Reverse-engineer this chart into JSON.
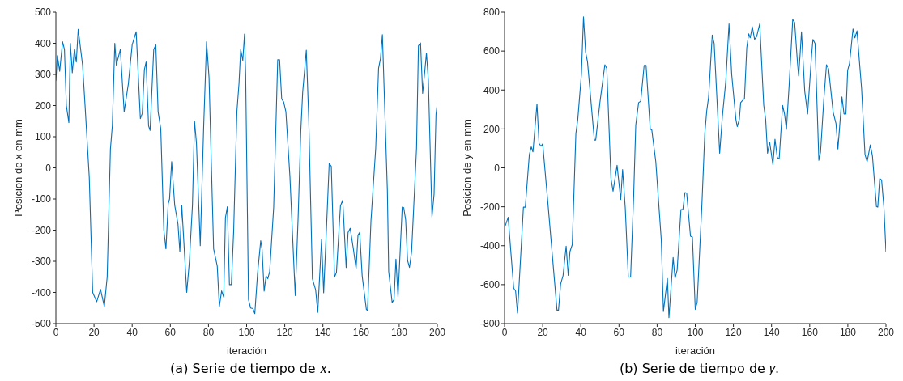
{
  "chart_data": [
    {
      "type": "line",
      "xlabel": "iteración",
      "ylabel": "Posicion de x en mm",
      "annotations": [
        "(a) Serie de tiempo de 𝑥."
      ],
      "xlim": [
        0,
        200
      ],
      "xticks": [
        0,
        20,
        40,
        60,
        80,
        100,
        120,
        140,
        160,
        180,
        200
      ],
      "ylim": [
        -500,
        500
      ],
      "yticks": [
        -500,
        -400,
        -300,
        -200,
        -100,
        0,
        100,
        200,
        300,
        400,
        500
      ],
      "x": [
        0,
        0.8,
        2,
        3.5,
        4.5,
        5.5,
        6.8,
        7.6,
        8.6,
        9.7,
        10.7,
        11.7,
        14,
        15.4,
        17.5,
        19.3,
        21.4,
        23.4,
        25.4,
        26.9,
        28.6,
        29.6,
        30.9,
        31.7,
        33.8,
        35.8,
        38,
        40,
        42.1,
        44.3,
        45.3,
        46.4,
        47.3,
        48.6,
        49.4,
        51.3,
        52.4,
        53.6,
        55,
        56.6,
        57.7,
        58.9,
        59.6,
        60.7,
        62.3,
        64,
        65,
        66,
        68.6,
        70,
        71.6,
        72.7,
        73.7,
        75.7,
        77.5,
        79,
        80.3,
        82.7,
        84.6,
        85.7,
        86.9,
        88,
        88.9,
        89.9,
        91,
        92,
        93.2,
        94.9,
        96,
        96.9,
        98,
        98.9,
        99.5,
        101,
        102.1,
        103.3,
        104.3,
        105.7,
        107.4,
        108.1,
        109.2,
        110.2,
        111.1,
        112.1,
        114.2,
        116.3,
        117.3,
        118.4,
        119.4,
        120.6,
        122.7,
        125.5,
        127,
        128.4,
        129.4,
        131.3,
        132.6,
        134.5,
        136.2,
        137.3,
        139.3,
        140.4,
        142.1,
        143.3,
        144.4,
        146.1,
        147.1,
        149.2,
        150.4,
        152.2,
        153.2,
        154.3,
        156,
        157.4,
        158.4,
        159.3,
        160.6,
        162.8,
        163.4,
        165.2,
        167.7,
        169.2,
        170.2,
        171.2,
        173.8,
        174.5,
        176.3,
        177.3,
        178.3,
        179.4,
        181.6,
        182.4,
        183.4,
        184.4,
        185.4,
        186.5,
        189.1,
        190.1,
        191.2,
        192.3,
        193.3,
        194.3,
        195.3,
        197.2,
        198.3,
        199.3,
        200
      ],
      "series": [
        {
          "color": "#0072bd",
          "values": [
            280,
            360,
            310,
            405,
            380,
            200,
            145,
            400,
            305,
            380,
            340,
            445,
            330,
            190,
            -30,
            -400,
            -430,
            -390,
            -445,
            -350,
            60,
            135,
            400,
            330,
            380,
            180,
            270,
            395,
            437,
            158,
            175,
            315,
            340,
            135,
            120,
            380,
            395,
            180,
            125,
            -200,
            -260,
            -115,
            -100,
            20,
            -120,
            -180,
            -270,
            -120,
            -400,
            -300,
            -120,
            150,
            80,
            -250,
            135,
            405,
            290,
            -260,
            -315,
            -445,
            -395,
            -415,
            -160,
            -125,
            -375,
            -375,
            -205,
            180,
            270,
            380,
            345,
            430,
            300,
            -423,
            -450,
            -452,
            -468,
            -342,
            -234,
            -261,
            -396,
            -347,
            -356,
            -333,
            -126,
            347,
            347,
            221,
            212,
            180,
            -27,
            -410,
            -162,
            117,
            243,
            378,
            153,
            -356,
            -392,
            -464,
            -230,
            -401,
            -162,
            14,
            5,
            -351,
            -336,
            -122,
            -104,
            -320,
            -207,
            -194,
            -261,
            -324,
            -216,
            -207,
            -347,
            -455,
            -458,
            -171,
            63,
            320,
            351,
            428,
            -72,
            -333,
            -432,
            -423,
            -293,
            -414,
            -126,
            -128,
            -167,
            -297,
            -320,
            -270,
            63,
            392,
            401,
            239,
            302,
            369,
            281,
            -158,
            -84,
            171,
            207
          ]
        }
      ]
    },
    {
      "type": "line",
      "xlabel": "iteración",
      "ylabel": "Posicion de y en mm",
      "annotations": [
        "(b) Serie de tiempo de 𝑦."
      ],
      "xlim": [
        0,
        200
      ],
      "xticks": [
        0,
        20,
        40,
        60,
        80,
        100,
        120,
        140,
        160,
        180,
        200
      ],
      "ylim": [
        -800,
        800
      ],
      "yticks": [
        -800,
        -600,
        -400,
        -200,
        0,
        200,
        400,
        600,
        800
      ],
      "x": [
        0,
        1.9,
        4.8,
        5.8,
        6.8,
        9.9,
        10.9,
        13,
        14,
        14.9,
        17,
        18.1,
        19.1,
        20,
        22.9,
        27.5,
        28.3,
        29.4,
        30.7,
        32.3,
        33.4,
        34.3,
        35.5,
        37.4,
        38.4,
        40.3,
        41.4,
        42.5,
        43.5,
        47.1,
        47.8,
        50,
        52.6,
        53.6,
        55.8,
        56.9,
        59,
        60.9,
        61.9,
        63.3,
        64.9,
        66.1,
        67.7,
        68.8,
        70.3,
        71.4,
        73.2,
        74.2,
        76.4,
        77.2,
        79.3,
        82.2,
        83.3,
        85.4,
        86.2,
        88.4,
        89.4,
        90.5,
        92.5,
        93.5,
        94.6,
        95.5,
        97.5,
        98.5,
        100,
        101,
        103.5,
        105,
        106,
        107,
        108.9,
        109.9,
        112.8,
        114.2,
        116,
        117.7,
        119.1,
        121.3,
        122,
        123.1,
        123.8,
        125.8,
        127,
        128,
        128.8,
        129.9,
        131.1,
        132.2,
        133.8,
        135.9,
        136.9,
        137.9,
        139,
        140.7,
        141.8,
        143,
        144,
        145.8,
        146.8,
        147.8,
        149.2,
        151.1,
        152.1,
        153.6,
        154.2,
        155,
        155.7,
        157.4,
        158.9,
        161,
        161.7,
        162.8,
        164.8,
        165.7,
        167.4,
        168.8,
        169.9,
        172.3,
        173.8,
        174.8,
        176.9,
        178,
        179,
        179.9,
        180.9,
        182.7,
        183.7,
        184.8,
        187.2,
        189,
        190.1,
        191.8,
        192.9,
        195,
        195.7,
        196.7,
        197.7,
        198.9,
        200
      ],
      "series": [
        {
          "color": "#0072bd",
          "values": [
            -308,
            -254,
            -618,
            -633,
            -746,
            -202,
            -202,
            68,
            108,
            82,
            328,
            126,
            111,
            123,
            -200,
            -731,
            -731,
            -597,
            -553,
            -402,
            -553,
            -430,
            -395,
            176,
            249,
            480,
            776,
            595,
            545,
            143,
            143,
            335,
            530,
            511,
            -55,
            -120,
            13,
            -163,
            -9,
            -207,
            -561,
            -561,
            -142,
            220,
            335,
            342,
            527,
            527,
            198,
            195,
            32,
            -373,
            -738,
            -568,
            -770,
            -460,
            -568,
            -525,
            -214,
            -214,
            -127,
            -130,
            -351,
            -355,
            -727,
            -690,
            -185,
            176,
            292,
            364,
            682,
            639,
            75,
            263,
            444,
            740,
            480,
            249,
            212,
            249,
            335,
            357,
            617,
            689,
            668,
            725,
            660,
            675,
            740,
            321,
            249,
            75,
            133,
            17,
            147,
            53,
            46,
            321,
            277,
            198,
            422,
            762,
            747,
            538,
            473,
            588,
            699,
            393,
            277,
            581,
            660,
            639,
            39,
            82,
            350,
            530,
            509,
            285,
            227,
            97,
            364,
            277,
            277,
            501,
            538,
            714,
            668,
            704,
            408,
            68,
            32,
            118,
            61,
            -199,
            -202,
            -55,
            -62,
            -199,
            -431
          ]
        }
      ]
    }
  ]
}
